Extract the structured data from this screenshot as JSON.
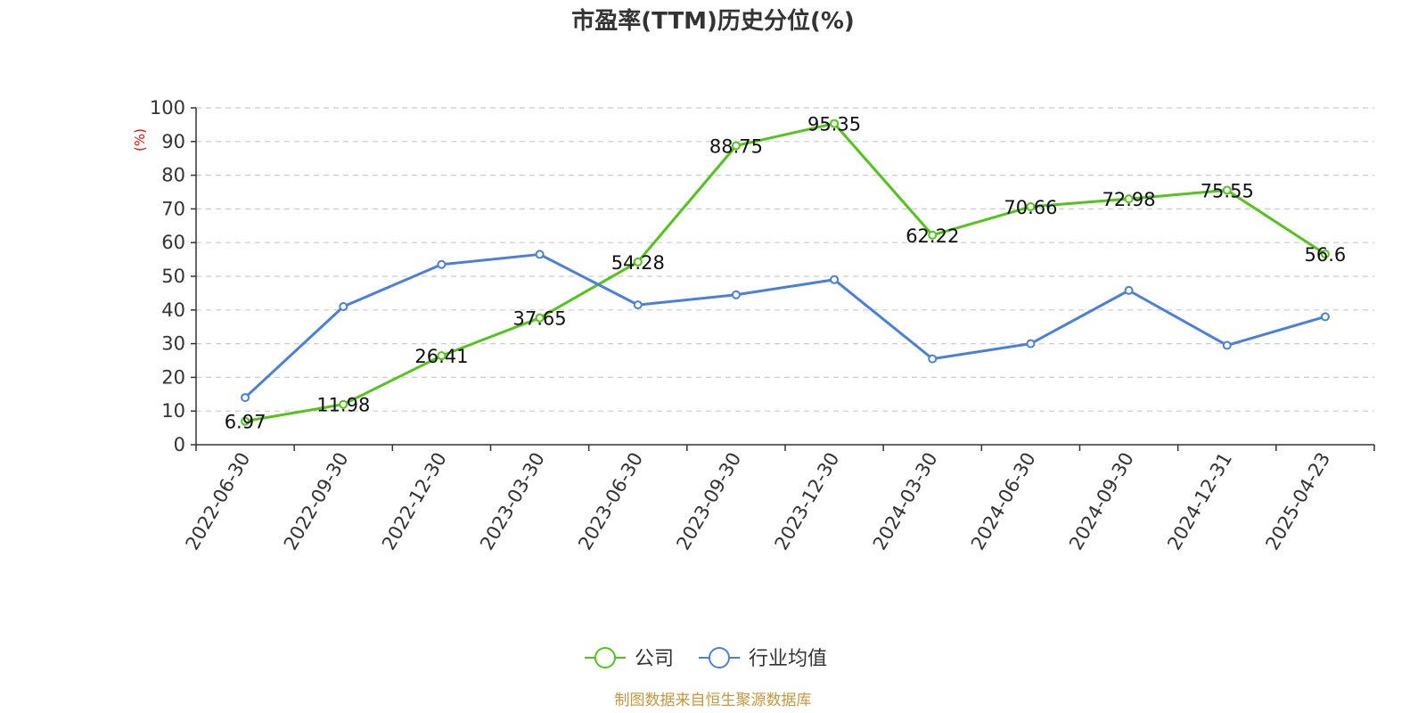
{
  "colors": {
    "company": "#52c41a",
    "industry": "#4a7fdc",
    "footer": "#c8963c",
    "unit": "#ff0000"
  },
  "footer_text": "制图数据来自恒生聚源数据库",
  "chart_data": {
    "type": "line",
    "title": "市盈率(TTM)历史分位(%)",
    "ylabel": "(%)",
    "ylim": [
      0,
      100
    ],
    "yticks": [
      0,
      10,
      20,
      30,
      40,
      50,
      60,
      70,
      80,
      90,
      100
    ],
    "grid": true,
    "legend_position": "bottom-center",
    "categories": [
      "2022-06-30",
      "2022-09-30",
      "2022-12-30",
      "2023-03-30",
      "2023-06-30",
      "2023-09-30",
      "2023-12-30",
      "2024-03-30",
      "2024-06-30",
      "2024-09-30",
      "2024-12-31",
      "2025-04-23"
    ],
    "series": [
      {
        "name": "公司",
        "color": "#52c41a",
        "show_labels": true,
        "values": [
          6.97,
          11.98,
          26.41,
          37.65,
          54.28,
          88.75,
          95.35,
          62.22,
          70.66,
          72.98,
          75.55,
          56.6
        ]
      },
      {
        "name": "行业均值",
        "color": "#4a7fdc",
        "show_labels": false,
        "values": [
          14.0,
          41.0,
          53.5,
          56.5,
          41.5,
          44.5,
          49.0,
          25.5,
          30.0,
          45.8,
          29.5,
          38.0
        ]
      }
    ]
  }
}
